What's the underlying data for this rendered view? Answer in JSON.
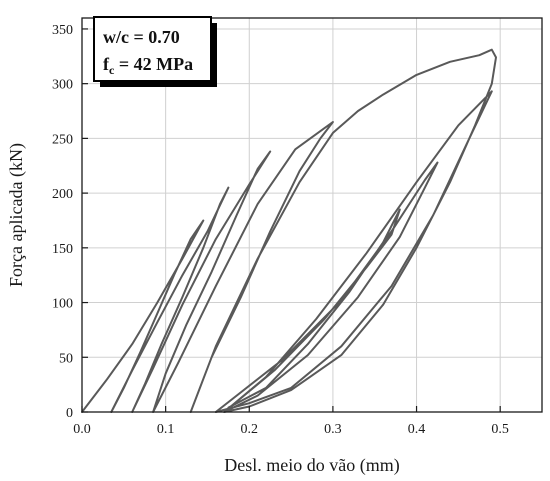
{
  "chart_data": {
    "type": "line",
    "xlabel": "Desl. meio do vão (mm)",
    "ylabel": "Força aplicada (kN)",
    "xlim": [
      0.0,
      0.55
    ],
    "ylim": [
      0,
      360
    ],
    "x_ticks": [
      "0.0",
      "0.1",
      "0.2",
      "0.3",
      "0.4",
      "0.5"
    ],
    "y_ticks": [
      "0",
      "50",
      "100",
      "150",
      "200",
      "250",
      "300",
      "350"
    ],
    "grid": true,
    "annotation": {
      "line1": "w/c = 0.70",
      "line2_main": "f",
      "line2_sub": "c",
      "line2_rest": " = 42 MPa"
    },
    "line_color": "#595959",
    "series": [
      {
        "points": [
          [
            0.0,
            0
          ],
          [
            0.03,
            30
          ],
          [
            0.06,
            62
          ],
          [
            0.09,
            100
          ],
          [
            0.12,
            140
          ],
          [
            0.145,
            175
          ],
          [
            0.13,
            158
          ],
          [
            0.11,
            125
          ],
          [
            0.09,
            90
          ],
          [
            0.07,
            55
          ],
          [
            0.05,
            22
          ],
          [
            0.035,
            0
          ],
          [
            0.06,
            38
          ],
          [
            0.09,
            82
          ],
          [
            0.12,
            125
          ],
          [
            0.15,
            165
          ],
          [
            0.175,
            205
          ],
          [
            0.165,
            190
          ],
          [
            0.145,
            150
          ],
          [
            0.12,
            105
          ],
          [
            0.095,
            62
          ],
          [
            0.075,
            25
          ],
          [
            0.06,
            0
          ],
          [
            0.085,
            40
          ],
          [
            0.12,
            98
          ],
          [
            0.16,
            158
          ],
          [
            0.2,
            208
          ],
          [
            0.225,
            238
          ],
          [
            0.21,
            222
          ],
          [
            0.185,
            180
          ],
          [
            0.155,
            128
          ],
          [
            0.125,
            80
          ],
          [
            0.1,
            35
          ],
          [
            0.085,
            0
          ],
          [
            0.115,
            45
          ],
          [
            0.16,
            115
          ],
          [
            0.21,
            190
          ],
          [
            0.255,
            240
          ],
          [
            0.3,
            265
          ],
          [
            0.285,
            250
          ],
          [
            0.26,
            220
          ],
          [
            0.225,
            165
          ],
          [
            0.19,
            105
          ],
          [
            0.155,
            50
          ],
          [
            0.13,
            0
          ],
          [
            0.16,
            60
          ],
          [
            0.21,
            140
          ],
          [
            0.26,
            210
          ],
          [
            0.3,
            255
          ],
          [
            0.33,
            275
          ],
          [
            0.36,
            290
          ],
          [
            0.4,
            308
          ],
          [
            0.44,
            320
          ],
          [
            0.475,
            326
          ],
          [
            0.49,
            331
          ],
          [
            0.495,
            324
          ],
          [
            0.49,
            300
          ],
          [
            0.47,
            262
          ],
          [
            0.44,
            210
          ],
          [
            0.4,
            150
          ],
          [
            0.36,
            98
          ],
          [
            0.31,
            52
          ],
          [
            0.25,
            20
          ],
          [
            0.2,
            5
          ],
          [
            0.17,
            0
          ],
          [
            0.22,
            32
          ],
          [
            0.28,
            85
          ],
          [
            0.34,
            145
          ],
          [
            0.4,
            210
          ],
          [
            0.45,
            262
          ],
          [
            0.49,
            293
          ],
          [
            0.485,
            285
          ],
          [
            0.46,
            245
          ],
          [
            0.42,
            180
          ],
          [
            0.37,
            115
          ],
          [
            0.31,
            60
          ],
          [
            0.25,
            22
          ],
          [
            0.2,
            8
          ],
          [
            0.16,
            0
          ],
          [
            0.24,
            48
          ],
          [
            0.31,
            102
          ],
          [
            0.37,
            165
          ],
          [
            0.41,
            212
          ],
          [
            0.425,
            228
          ],
          [
            0.41,
            205
          ],
          [
            0.38,
            160
          ],
          [
            0.33,
            105
          ],
          [
            0.27,
            52
          ],
          [
            0.21,
            15
          ],
          [
            0.17,
            0
          ],
          [
            0.23,
            38
          ],
          [
            0.29,
            85
          ],
          [
            0.34,
            132
          ],
          [
            0.37,
            162
          ],
          [
            0.38,
            185
          ],
          [
            0.36,
            155
          ],
          [
            0.32,
            110
          ],
          [
            0.27,
            62
          ],
          [
            0.22,
            22
          ],
          [
            0.175,
            4
          ]
        ]
      }
    ]
  }
}
